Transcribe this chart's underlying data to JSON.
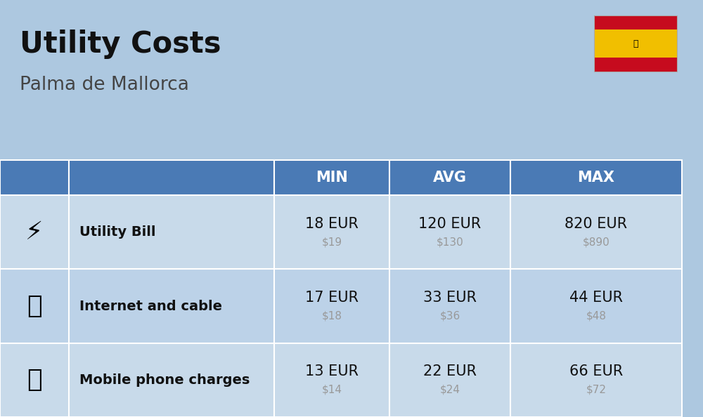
{
  "title": "Utility Costs",
  "subtitle": "Palma de Mallorca",
  "background_color": "#adc8e0",
  "header_color": "#4a7ab5",
  "header_text_color": "#ffffff",
  "row_color_light": "#c8daea",
  "row_color_dark": "#bcd2e8",
  "separator_color": "#ffffff",
  "rows": [
    {
      "label": "Utility Bill",
      "min_eur": "18 EUR",
      "min_usd": "$19",
      "avg_eur": "120 EUR",
      "avg_usd": "$130",
      "max_eur": "820 EUR",
      "max_usd": "$890"
    },
    {
      "label": "Internet and cable",
      "min_eur": "17 EUR",
      "min_usd": "$18",
      "avg_eur": "33 EUR",
      "avg_usd": "$36",
      "max_eur": "44 EUR",
      "max_usd": "$48"
    },
    {
      "label": "Mobile phone charges",
      "min_eur": "13 EUR",
      "min_usd": "$14",
      "avg_eur": "22 EUR",
      "avg_usd": "$24",
      "max_eur": "66 EUR",
      "max_usd": "$72"
    }
  ],
  "col_headers": [
    "MIN",
    "AVG",
    "MAX"
  ],
  "title_fontsize": 30,
  "subtitle_fontsize": 19,
  "header_fontsize": 15,
  "label_fontsize": 14,
  "value_fontsize": 15,
  "usd_fontsize": 11,
  "usd_color": "#999999",
  "label_color": "#111111",
  "value_color": "#111111",
  "flag_red": "#c60b1e",
  "flag_yellow": "#f1bf00"
}
